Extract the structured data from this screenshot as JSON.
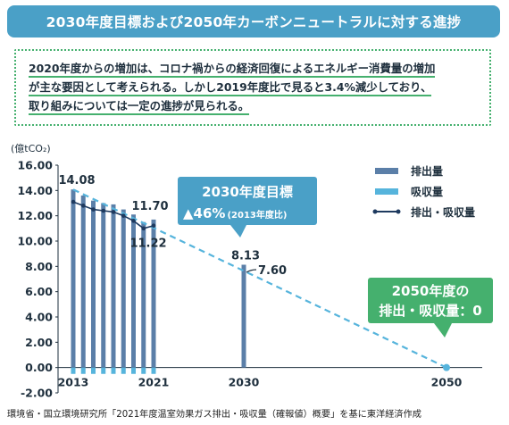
{
  "header": {
    "title": "2030年度目標および2050年カーボンニュートラルに対する進捗"
  },
  "note": {
    "lines": [
      "2020年度からの増加は、コロナ禍からの経済回復によるエネルギー消費量の増加",
      "が主な要因として考えられる。しかし2019年度比で見ると3.4%減少しており、",
      "取り組みについては一定の進捗が見られる。"
    ]
  },
  "chart_data": {
    "type": "bar",
    "unit_label": "(億tCO₂)",
    "ylim": [
      -2,
      16
    ],
    "y_ticks": [
      "16.00",
      "14.00",
      "12.00",
      "10.00",
      "8.00",
      "6.00",
      "4.00",
      "2.00",
      "0.00",
      "-2.00"
    ],
    "x_ticks": [
      "2013",
      "2021",
      "2030",
      "2050"
    ],
    "series": [
      {
        "name": "排出量",
        "color": "#5b7fa8",
        "points": [
          {
            "x": 2013,
            "y": 14.08
          },
          {
            "x": 2014,
            "y": 13.6
          },
          {
            "x": 2015,
            "y": 13.2
          },
          {
            "x": 2016,
            "y": 13.0
          },
          {
            "x": 2017,
            "y": 12.9
          },
          {
            "x": 2018,
            "y": 12.5
          },
          {
            "x": 2019,
            "y": 12.1
          },
          {
            "x": 2020,
            "y": 11.5
          },
          {
            "x": 2021,
            "y": 11.7
          },
          {
            "x": 2030,
            "y": 8.13
          }
        ]
      },
      {
        "name": "吸収量",
        "color": "#56b4dc",
        "points": [
          {
            "x": 2013,
            "y": -0.5
          },
          {
            "x": 2014,
            "y": -0.5
          },
          {
            "x": 2015,
            "y": -0.5
          },
          {
            "x": 2016,
            "y": -0.5
          },
          {
            "x": 2017,
            "y": -0.5
          },
          {
            "x": 2018,
            "y": -0.5
          },
          {
            "x": 2019,
            "y": -0.5
          },
          {
            "x": 2020,
            "y": -0.5
          },
          {
            "x": 2021,
            "y": -0.5
          }
        ]
      },
      {
        "name": "排出・吸収量",
        "color": "#1e3a5f",
        "points": [
          {
            "x": 2013,
            "y": 13.1
          },
          {
            "x": 2014,
            "y": 12.8
          },
          {
            "x": 2015,
            "y": 12.5
          },
          {
            "x": 2016,
            "y": 12.4
          },
          {
            "x": 2017,
            "y": 12.3
          },
          {
            "x": 2018,
            "y": 12.0
          },
          {
            "x": 2019,
            "y": 11.6
          },
          {
            "x": 2020,
            "y": 11.0
          },
          {
            "x": 2021,
            "y": 11.22
          }
        ]
      }
    ],
    "target_line": {
      "color": "#56b4dc",
      "from": {
        "x": 2013,
        "y": 14.08
      },
      "to": {
        "x": 2050,
        "y": 0
      }
    },
    "data_labels": [
      {
        "id": "v2013",
        "text": "14.08"
      },
      {
        "id": "v2021",
        "text": "11.70"
      },
      {
        "id": "v2021net",
        "text": "11.22"
      },
      {
        "id": "v2030",
        "text": "8.13"
      },
      {
        "id": "v2030net",
        "text": "7.60"
      }
    ],
    "callout_2030": {
      "title": "2030年度目標",
      "value": "▲46%",
      "note": "(2013年度比)",
      "color": "#4aa0c7"
    },
    "callout_2050": {
      "line1": "2050年度の",
      "line2": "排出・吸収量：0",
      "color": "#45b06e"
    },
    "legend": {
      "placement": "top-right"
    }
  },
  "source": {
    "text": "環境省・国立環境研究所「2021年度温室効果ガス排出・吸収量（確報値）概要」を基に東洋経済作成"
  }
}
